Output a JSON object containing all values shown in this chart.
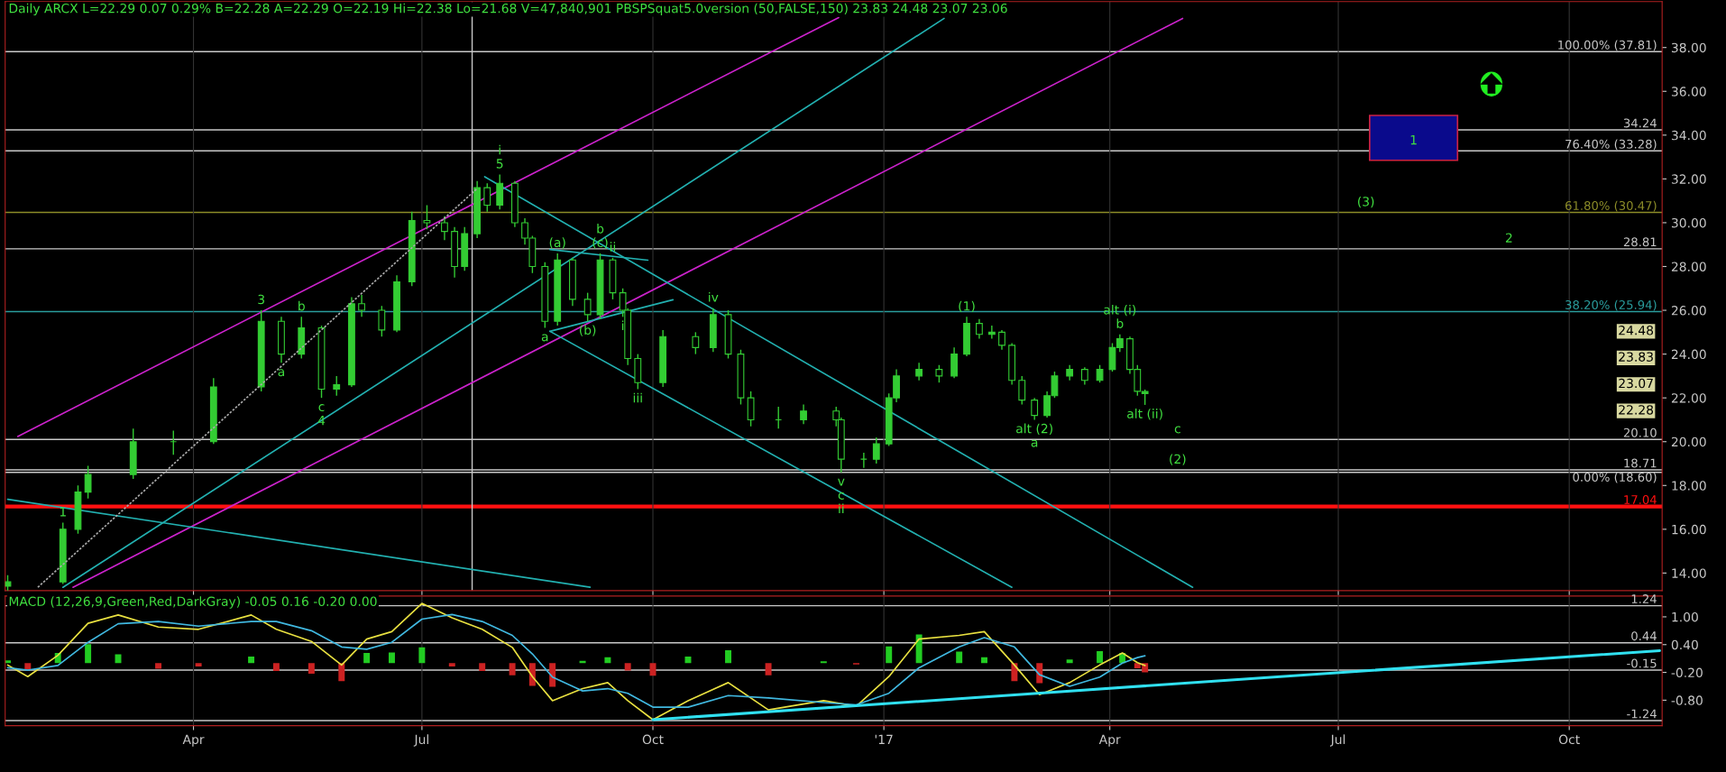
{
  "chart_data": [
    {
      "type": "candlestick",
      "title": "Daily ARCX L=22.29 0.07 0.29% B=22.28 A=22.29 O=22.19 Hi=22.38 Lo=21.68 V=47,840,901 PBSPSquat5.0version (50,FALSE,150) 23.83 24.48 23.07 23.06",
      "color": "#33cc33",
      "x": [
        "2016-01-18",
        "2016-02-09",
        "2016-02-15",
        "2016-02-19",
        "2016-03-08",
        "2016-03-24",
        "2016-04-09",
        "2016-04-28",
        "2016-05-06",
        "2016-05-14",
        "2016-05-22",
        "2016-05-28",
        "2016-06-03",
        "2016-06-07",
        "2016-06-15",
        "2016-06-21",
        "2016-06-27",
        "2016-07-03",
        "2016-07-10",
        "2016-07-14",
        "2016-07-18",
        "2016-07-23",
        "2016-07-27",
        "2016-08-01",
        "2016-08-07",
        "2016-08-11",
        "2016-08-14",
        "2016-08-19",
        "2016-08-24",
        "2016-08-30",
        "2016-09-05",
        "2016-09-10",
        "2016-09-15",
        "2016-09-19",
        "2016-09-21",
        "2016-09-25",
        "2016-10-05",
        "2016-10-18",
        "2016-10-25",
        "2016-10-31",
        "2016-11-05",
        "2016-11-09",
        "2016-11-20",
        "2016-11-30",
        "2016-12-13",
        "2016-12-15",
        "2016-12-24",
        "2016-12-29",
        "2017-01-03",
        "2017-01-06",
        "2017-01-15",
        "2017-01-23",
        "2017-01-29",
        "2017-02-03",
        "2017-02-08",
        "2017-02-13",
        "2017-02-17",
        "2017-02-21",
        "2017-02-25",
        "2017-03-02",
        "2017-03-07",
        "2017-03-10",
        "2017-03-16",
        "2017-03-22",
        "2017-03-28",
        "2017-04-02",
        "2017-04-05",
        "2017-04-09",
        "2017-04-12",
        "2017-04-15"
      ],
      "ohlc": [
        [
          13.4,
          13.9,
          13.1,
          13.6
        ],
        [
          13.6,
          16.3,
          13.5,
          16.0
        ],
        [
          16.0,
          18.0,
          15.8,
          17.7
        ],
        [
          17.7,
          18.9,
          17.4,
          18.5
        ],
        [
          18.5,
          20.6,
          18.3,
          20.0
        ],
        [
          20.0,
          20.5,
          19.4,
          20.0
        ],
        [
          20.0,
          22.9,
          19.9,
          22.5
        ],
        [
          22.5,
          26.0,
          22.3,
          25.5
        ],
        [
          25.5,
          25.7,
          23.6,
          24.0
        ],
        [
          24.0,
          25.7,
          23.8,
          25.2
        ],
        [
          25.2,
          25.3,
          22.0,
          22.4
        ],
        [
          22.4,
          23.0,
          22.1,
          22.6
        ],
        [
          22.6,
          26.6,
          22.5,
          26.3
        ],
        [
          26.3,
          26.7,
          25.7,
          26.0
        ],
        [
          26.0,
          26.2,
          24.8,
          25.1
        ],
        [
          25.1,
          27.6,
          25.0,
          27.3
        ],
        [
          27.3,
          30.5,
          27.1,
          30.1
        ],
        [
          30.1,
          30.8,
          29.7,
          30.0
        ],
        [
          30.0,
          30.3,
          29.2,
          29.6
        ],
        [
          29.6,
          29.8,
          27.5,
          28.0
        ],
        [
          28.0,
          29.8,
          27.8,
          29.5
        ],
        [
          29.5,
          31.9,
          29.3,
          31.6
        ],
        [
          31.6,
          31.8,
          30.5,
          30.8
        ],
        [
          30.8,
          32.2,
          30.6,
          31.8
        ],
        [
          31.8,
          31.9,
          29.8,
          30.0
        ],
        [
          30.0,
          30.2,
          29.0,
          29.3
        ],
        [
          29.3,
          29.4,
          27.7,
          28.0
        ],
        [
          28.0,
          28.2,
          25.2,
          25.5
        ],
        [
          25.5,
          28.6,
          25.3,
          28.3
        ],
        [
          28.3,
          28.4,
          26.2,
          26.5
        ],
        [
          26.5,
          26.8,
          25.5,
          25.8
        ],
        [
          25.8,
          28.6,
          25.6,
          28.3
        ],
        [
          28.3,
          28.4,
          26.5,
          26.8
        ],
        [
          26.8,
          27.0,
          25.7,
          26.0
        ],
        [
          26.0,
          26.1,
          23.5,
          23.8
        ],
        [
          23.8,
          24.0,
          22.4,
          22.7
        ],
        [
          22.7,
          25.1,
          22.5,
          24.8
        ],
        [
          24.8,
          25.0,
          24.0,
          24.3
        ],
        [
          24.3,
          26.1,
          24.1,
          25.8
        ],
        [
          25.8,
          26.0,
          23.8,
          24.0
        ],
        [
          24.0,
          24.2,
          21.7,
          22.0
        ],
        [
          22.0,
          22.3,
          20.7,
          21.0
        ],
        [
          21.0,
          21.6,
          20.6,
          21.0
        ],
        [
          21.0,
          21.7,
          20.8,
          21.4
        ],
        [
          21.4,
          21.6,
          20.7,
          21.0
        ],
        [
          21.0,
          21.1,
          18.6,
          19.2
        ],
        [
          19.2,
          19.5,
          18.8,
          19.2
        ],
        [
          19.2,
          20.2,
          19.0,
          19.9
        ],
        [
          19.9,
          22.2,
          19.8,
          22.0
        ],
        [
          22.0,
          23.3,
          21.8,
          23.0
        ],
        [
          23.0,
          23.6,
          22.8,
          23.3
        ],
        [
          23.3,
          23.5,
          22.7,
          23.0
        ],
        [
          23.0,
          24.3,
          22.9,
          24.0
        ],
        [
          24.0,
          25.7,
          23.9,
          25.4
        ],
        [
          25.4,
          25.6,
          24.7,
          24.9
        ],
        [
          24.9,
          25.3,
          24.7,
          25.0
        ],
        [
          25.0,
          25.1,
          24.2,
          24.4
        ],
        [
          24.4,
          24.5,
          22.6,
          22.8
        ],
        [
          22.8,
          23.0,
          21.7,
          21.9
        ],
        [
          21.9,
          22.0,
          21.0,
          21.2
        ],
        [
          21.2,
          22.3,
          21.1,
          22.1
        ],
        [
          22.1,
          23.2,
          22.0,
          23.0
        ],
        [
          23.0,
          23.5,
          22.8,
          23.3
        ],
        [
          23.3,
          23.4,
          22.6,
          22.8
        ],
        [
          22.8,
          23.5,
          22.7,
          23.3
        ],
        [
          23.3,
          24.5,
          23.2,
          24.3
        ],
        [
          24.3,
          24.9,
          24.1,
          24.7
        ],
        [
          24.7,
          24.8,
          23.1,
          23.3
        ],
        [
          23.3,
          23.5,
          22.1,
          22.3
        ],
        [
          22.19,
          22.38,
          21.68,
          22.29
        ]
      ],
      "series": [
        {
          "type": "line",
          "color": "#cc22cc",
          "x": [
            "2016-01-22",
            "2016-12-14"
          ],
          "values": [
            20.24,
            39.37
          ]
        },
        {
          "type": "line",
          "color": "#cc22cc",
          "x": [
            "2016-02-13",
            "2017-04-30"
          ],
          "values": [
            13.35,
            39.33
          ]
        },
        {
          "type": "line",
          "color": "#22b0b0",
          "x": [
            "2016-02-09",
            "2017-01-25"
          ],
          "values": [
            13.35,
            39.33
          ]
        },
        {
          "type": "line",
          "color": "#22b0b0",
          "x": [
            "2016-01-18",
            "2016-09-06"
          ],
          "values": [
            17.37,
            13.35
          ]
        },
        {
          "type": "line",
          "color": "#22b0b0",
          "x": [
            "2016-07-26",
            "2017-05-04"
          ],
          "values": [
            32.1,
            13.35
          ]
        },
        {
          "type": "line",
          "color": "#22b0b0",
          "x": [
            "2016-08-21",
            "2017-02-21"
          ],
          "values": [
            25.04,
            13.35
          ]
        },
        {
          "type": "line",
          "color": "#22b0b0",
          "x": [
            "2016-08-21",
            "2016-09-29"
          ],
          "values": [
            28.78,
            28.29
          ]
        },
        {
          "type": "line",
          "color": "#22b0b0",
          "x": [
            "2016-08-21",
            "2016-10-09"
          ],
          "values": [
            25.04,
            26.48
          ]
        },
        {
          "type": "line",
          "color": "#aaaaaa",
          "line_style": "dashed",
          "x": [
            "2016-01-30",
            "2016-07-23"
          ],
          "values": [
            13.35,
            31.56
          ]
        },
        {
          "type": "bar",
          "color": "#0a0a8c",
          "x": [
            "2017-07-31"
          ],
          "base": [
            32.85
          ],
          "values": [
            2.05
          ]
        }
      ],
      "ref_lines": [
        {
          "axis": "y",
          "value": 37.81,
          "label": "100.00% (37.81)",
          "color": "#c8c8c8"
        },
        {
          "axis": "y",
          "value": 34.24,
          "label": "34.24",
          "color": "#c8c8c8"
        },
        {
          "axis": "y",
          "value": 33.28,
          "label": "76.40% (33.28)",
          "color": "#c8c8c8"
        },
        {
          "axis": "y",
          "value": 30.47,
          "label": "61.80% (30.47)",
          "color": "#8c8c28"
        },
        {
          "axis": "y",
          "value": 28.81,
          "label": "28.81",
          "color": "#c8c8c8"
        },
        {
          "axis": "y",
          "value": 25.94,
          "label": "38.20% (25.94)",
          "color": "#2a9d9d"
        },
        {
          "axis": "y",
          "value": 20.1,
          "label": "20.10",
          "color": "#c8c8c8"
        },
        {
          "axis": "y",
          "value": 18.71,
          "label": "18.71",
          "color": "#c8c8c8"
        },
        {
          "axis": "y",
          "value": 18.6,
          "label": "0.00% (18.60)",
          "color": "#c8c8c8"
        },
        {
          "axis": "y",
          "value": 17.04,
          "label": "17.04",
          "color": "#ff1010"
        },
        {
          "axis": "x",
          "value": "2016-07-21",
          "color": "#c8c8c8"
        }
      ],
      "annotations": [
        {
          "text": "1",
          "x": "2016-02-09",
          "y": 16.3
        },
        {
          "text": "3",
          "x": "2016-04-28",
          "y": 26.0
        },
        {
          "text": "b",
          "x": "2016-05-14",
          "y": 25.7
        },
        {
          "text": "a",
          "x": "2016-05-06",
          "y": 23.6
        },
        {
          "text": "c",
          "x": "2016-05-22",
          "y": 22.0
        },
        {
          "text": "4",
          "x": "2016-05-22",
          "y": 22.0
        },
        {
          "text": "5",
          "x": "2016-08-01",
          "y": 32.2
        },
        {
          "text": "i",
          "x": "2016-08-01",
          "y": 32.2
        },
        {
          "text": "(a)",
          "x": "2016-08-24",
          "y": 28.6
        },
        {
          "text": "(c)",
          "x": "2016-09-10",
          "y": 28.6
        },
        {
          "text": "b",
          "x": "2016-09-10",
          "y": 28.6
        },
        {
          "text": "ii",
          "x": "2016-09-15",
          "y": 28.4
        },
        {
          "text": "i",
          "x": "2016-09-19",
          "y": 25.7
        },
        {
          "text": "(b)",
          "x": "2016-09-05",
          "y": 25.5
        },
        {
          "text": "a",
          "x": "2016-08-19",
          "y": 25.2
        },
        {
          "text": "iii",
          "x": "2016-09-25",
          "y": 22.4
        },
        {
          "text": "iv",
          "x": "2016-10-25",
          "y": 26.1
        },
        {
          "text": "v",
          "x": "2016-12-15",
          "y": 18.6
        },
        {
          "text": "c",
          "x": "2016-12-15",
          "y": 18.6
        },
        {
          "text": "ii",
          "x": "2016-12-15",
          "y": 18.6
        },
        {
          "text": "(1)",
          "x": "2017-02-03",
          "y": 25.7
        },
        {
          "text": "alt (2)",
          "x": "2017-03-02",
          "y": 21.0
        },
        {
          "text": "a",
          "x": "2017-03-02",
          "y": 21.0
        },
        {
          "text": "b",
          "x": "2017-04-05",
          "y": 24.9
        },
        {
          "text": "alt (i)",
          "x": "2017-04-05",
          "y": 24.9
        },
        {
          "text": "alt (ii)",
          "x": "2017-04-15",
          "y": 21.68
        },
        {
          "text": "c",
          "x": "2017-04-28",
          "y": 20.1
        },
        {
          "text": "(2)",
          "x": "2017-04-28",
          "y": 18.71
        },
        {
          "text": "(3)",
          "x": "2017-07-12",
          "y": 30.47
        },
        {
          "text": "2",
          "x": "2017-09-07",
          "y": 28.81
        },
        {
          "text": "1",
          "x": "2017-07-31",
          "y": 33.28
        },
        "24.48",
        "23.83",
        "23.07",
        "22.28"
      ],
      "xlim": [
        "2016-01-17",
        "2017-11-07"
      ],
      "xticks": [
        {
          "value": "2016-04-01",
          "label": null
        },
        {
          "value": "2016-07-01",
          "label": null
        },
        {
          "value": "2016-10-01",
          "label": null
        },
        {
          "value": "2017-01-01",
          "label": null
        },
        {
          "value": "2017-04-01",
          "label": null
        },
        {
          "value": "2017-07-01",
          "label": null
        },
        {
          "value": "2017-10-01",
          "label": null
        }
      ],
      "ylim": [
        13.2,
        40.1
      ],
      "yticks": [
        {
          "value": 14,
          "label": "14.00"
        },
        {
          "value": 16,
          "label": "16.00"
        },
        {
          "value": 18,
          "label": "18.00"
        },
        {
          "value": 20,
          "label": "20.00"
        },
        {
          "value": 22,
          "label": "22.00"
        },
        {
          "value": 24,
          "label": "24.00"
        },
        {
          "value": 26,
          "label": "26.00"
        },
        {
          "value": 28,
          "label": "28.00"
        },
        {
          "value": 30,
          "label": "30.00"
        },
        {
          "value": 32,
          "label": "32.00"
        },
        {
          "value": 34,
          "label": "34.00"
        },
        {
          "value": 36,
          "label": "36.00"
        },
        {
          "value": 38,
          "label": "38.00"
        }
      ],
      "tick_labels": "y",
      "grid": "x",
      "legend": false
    },
    {
      "type": "line",
      "title": "MACD (12,26,9,Green,Red,DarkGray) -0.05 0.16 -0.20 0.00",
      "x": [
        "2016-01-18",
        "2016-01-26",
        "2016-02-07",
        "2016-02-19",
        "2016-03-02",
        "2016-03-18",
        "2016-04-03",
        "2016-04-24",
        "2016-05-04",
        "2016-05-18",
        "2016-05-30",
        "2016-06-09",
        "2016-06-19",
        "2016-07-01",
        "2016-07-13",
        "2016-07-25",
        "2016-08-06",
        "2016-08-14",
        "2016-08-22",
        "2016-09-03",
        "2016-09-13",
        "2016-09-21",
        "2016-10-01",
        "2016-10-15",
        "2016-10-31",
        "2016-11-16",
        "2016-12-08",
        "2016-12-21",
        "2017-01-03",
        "2017-01-15",
        "2017-01-31",
        "2017-02-10",
        "2017-02-22",
        "2017-03-04",
        "2017-03-16",
        "2017-03-28",
        "2017-04-06",
        "2017-04-12",
        "2017-04-15"
      ],
      "series": [
        {
          "type": "bar",
          "colors": [
            "#22cc22",
            "#cc2222",
            "#22cc22",
            "#22cc22",
            "#22cc22",
            "#cc2222",
            "#cc2222",
            "#22cc22",
            "#cc2222",
            "#cc2222",
            "#cc2222",
            "#22cc22",
            "#22cc22",
            "#22cc22",
            "#cc2222",
            "#cc2222",
            "#cc2222",
            "#cc2222",
            "#cc2222",
            "#22cc22",
            "#22cc22",
            "#cc2222",
            "#cc2222",
            "#22cc22",
            "#22cc22",
            "#cc2222",
            "#22cc22",
            "#cc2222",
            "#22cc22",
            "#22cc22",
            "#22cc22",
            "#22cc22",
            "#cc2222",
            "#cc2222",
            "#22cc22",
            "#22cc22",
            "#22cc22",
            "#cc2222",
            "#cc2222"
          ],
          "values": [
            0.06,
            -0.14,
            0.22,
            0.41,
            0.19,
            -0.12,
            -0.07,
            0.14,
            -0.17,
            -0.23,
            -0.39,
            0.22,
            0.23,
            0.34,
            -0.07,
            -0.17,
            -0.26,
            -0.49,
            -0.51,
            0.05,
            0.13,
            -0.16,
            -0.27,
            0.14,
            0.28,
            -0.26,
            0.04,
            -0.03,
            0.36,
            0.62,
            0.25,
            0.13,
            -0.39,
            -0.43,
            0.08,
            0.26,
            0.22,
            -0.11,
            -0.2
          ]
        },
        {
          "type": "line",
          "color": "#e8e040",
          "values": [
            -0.04,
            -0.29,
            0.17,
            0.86,
            1.04,
            0.78,
            0.73,
            1.04,
            0.73,
            0.47,
            -0.04,
            0.52,
            0.68,
            1.29,
            0.98,
            0.73,
            0.34,
            -0.29,
            -0.81,
            -0.55,
            -0.42,
            -0.81,
            -1.22,
            -0.81,
            -0.42,
            -1.01,
            -0.81,
            -0.93,
            -0.29,
            0.52,
            0.6,
            0.68,
            -0.04,
            -0.68,
            -0.42,
            -0.04,
            0.22,
            0.01,
            -0.05
          ]
        },
        {
          "type": "line",
          "color": "#40b8e0",
          "values": [
            -0.1,
            -0.15,
            -0.05,
            0.45,
            0.85,
            0.9,
            0.8,
            0.9,
            0.9,
            0.7,
            0.35,
            0.3,
            0.45,
            0.95,
            1.05,
            0.9,
            0.6,
            0.2,
            -0.3,
            -0.6,
            -0.55,
            -0.65,
            -0.95,
            -0.95,
            -0.7,
            -0.75,
            -0.85,
            -0.9,
            -0.65,
            -0.1,
            0.35,
            0.55,
            0.35,
            -0.25,
            -0.5,
            -0.3,
            0.0,
            0.12,
            0.16
          ]
        },
        {
          "type": "line",
          "color": "#30e0f0",
          "x": [
            "2016-10-01",
            "2017-11-06"
          ],
          "values": [
            -1.22,
            0.27
          ]
        }
      ],
      "ref_lines": [
        {
          "axis": "y",
          "value": 1.24,
          "label": "1.24",
          "color": "#c8c8c8"
        },
        {
          "axis": "y",
          "value": 0.44,
          "label": "0.44",
          "color": "#c8c8c8"
        },
        {
          "axis": "y",
          "value": -0.15,
          "label": "-0.15",
          "color": "#c8c8c8"
        },
        {
          "axis": "y",
          "value": -1.24,
          "label": "-1.24",
          "color": "#c8c8c8"
        }
      ],
      "xlim": [
        "2016-01-17",
        "2017-11-07"
      ],
      "xticks": [
        {
          "value": "2016-04-01",
          "label": "Apr"
        },
        {
          "value": "2016-07-01",
          "label": "Jul"
        },
        {
          "value": "2016-10-01",
          "label": "Oct"
        },
        {
          "value": "2017-01-01",
          "label": "'17"
        },
        {
          "value": "2017-04-01",
          "label": "Apr"
        },
        {
          "value": "2017-07-01",
          "label": "Jul"
        },
        {
          "value": "2017-10-01",
          "label": "Oct"
        }
      ],
      "ylim": [
        -1.35,
        1.45
      ],
      "yticks": [
        {
          "value": 1.0,
          "label": "1.00"
        },
        {
          "value": 0.4,
          "label": "0.40"
        },
        {
          "value": -0.2,
          "label": "-0.20"
        },
        {
          "value": -0.8,
          "label": "-0.80"
        }
      ],
      "grid": "x",
      "legend": false
    }
  ]
}
